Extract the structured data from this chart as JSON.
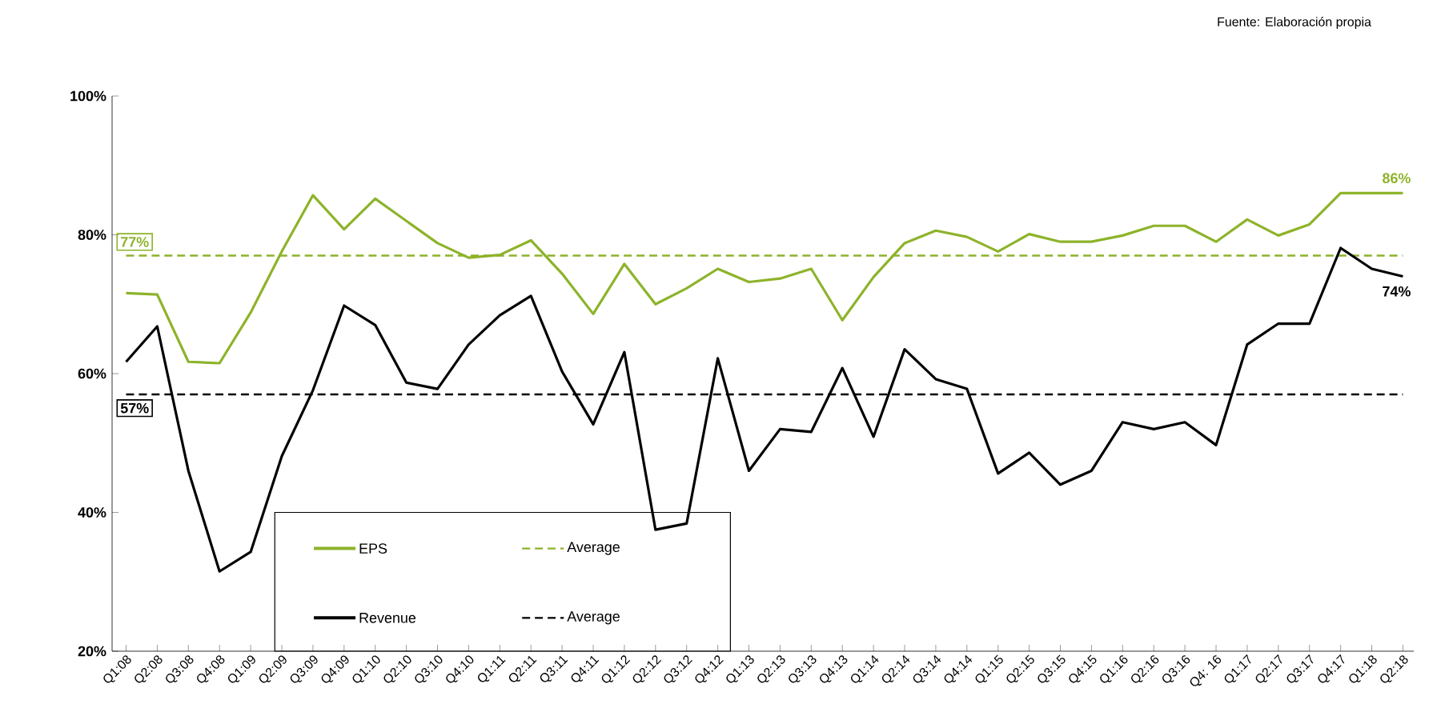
{
  "chart_data": {
    "type": "line",
    "categories": [
      "Q1:08",
      "Q2:08",
      "Q3:08",
      "Q4:08",
      "Q1:09",
      "Q2:09",
      "Q3:09",
      "Q4:09",
      "Q1:10",
      "Q2:10",
      "Q3:10",
      "Q4:10",
      "Q1:11",
      "Q2:11",
      "Q3:11",
      "Q4:11",
      "Q1:12",
      "Q2:12",
      "Q3:12",
      "Q4:12",
      "Q1:13",
      "Q2:13",
      "Q3:13",
      "Q4:13",
      "Q1:14",
      "Q2:14",
      "Q3:14",
      "Q4:14",
      "Q1:15",
      "Q2:15",
      "Q3:15",
      "Q4:15",
      "Q1:16",
      "Q2:16",
      "Q3:16",
      "Q4: 16",
      "Q1:17",
      "Q2:17",
      "Q3:17",
      "Q4:17",
      "Q1:18",
      "Q2:18"
    ],
    "series": [
      {
        "name": "EPS",
        "color": "#8db32a",
        "line_style": "solid",
        "values": [
          71.6,
          71.4,
          61.7,
          61.5,
          68.8,
          77.6,
          85.7,
          80.8,
          85.2,
          82,
          78.8,
          76.7,
          77.1,
          79.2,
          74.4,
          68.6,
          75.8,
          70,
          72.3,
          75.1,
          73.2,
          73.7,
          75.1,
          67.7,
          73.9,
          78.8,
          80.6,
          79.7,
          77.6,
          80.1,
          79,
          79,
          79.9,
          81.3,
          81.3,
          79,
          82.2,
          79.9,
          81.5,
          86,
          86,
          86
        ]
      },
      {
        "name": "Average",
        "color": "#8db32a",
        "line_style": "dashed",
        "values": [
          77,
          77,
          77,
          77,
          77,
          77,
          77,
          77,
          77,
          77,
          77,
          77,
          77,
          77,
          77,
          77,
          77,
          77,
          77,
          77,
          77,
          77,
          77,
          77,
          77,
          77,
          77,
          77,
          77,
          77,
          77,
          77,
          77,
          77,
          77,
          77,
          77,
          77,
          77,
          77,
          77,
          77
        ]
      },
      {
        "name": "Revenue",
        "color": "#000000",
        "line_style": "solid",
        "values": [
          61.7,
          66.8,
          46,
          31.5,
          34.3,
          48.1,
          57.6,
          69.8,
          67,
          58.7,
          57.8,
          64.2,
          68.4,
          71.2,
          60.3,
          52.7,
          63.1,
          37.5,
          38.4,
          62.2,
          46,
          52,
          51.6,
          60.8,
          50.9,
          63.5,
          59.2,
          57.8,
          45.6,
          48.6,
          44,
          46,
          53,
          52,
          53,
          49.7,
          64.2,
          67.2,
          67.2,
          78.1,
          75.1,
          74
        ]
      },
      {
        "name": "Average",
        "color": "#000000",
        "line_style": "dashed",
        "values": [
          57,
          57,
          57,
          57,
          57,
          57,
          57,
          57,
          57,
          57,
          57,
          57,
          57,
          57,
          57,
          57,
          57,
          57,
          57,
          57,
          57,
          57,
          57,
          57,
          57,
          57,
          57,
          57,
          57,
          57,
          57,
          57,
          57,
          57,
          57,
          57,
          57,
          57,
          57,
          57,
          57,
          57
        ]
      }
    ],
    "ylim": [
      20,
      100
    ],
    "yticks": [
      {
        "value": 20,
        "label": "20%"
      },
      {
        "value": 40,
        "label": "40%"
      },
      {
        "value": 60,
        "label": "60%"
      },
      {
        "value": 80,
        "label": "80%"
      },
      {
        "value": 100,
        "label": "100%"
      }
    ],
    "grid": false,
    "legend": "bottom left",
    "marker": "none",
    "annotations": [
      {
        "text": "77%",
        "x": "Q1:08",
        "y": 77
      },
      {
        "text": "57%",
        "x": "Q1:08",
        "y": 57
      },
      {
        "text": "86%",
        "x": "Q2:18",
        "y": 86
      },
      {
        "text": "74%",
        "x": "Q2:18",
        "y": 74
      },
      "Fuente: Elaboración propia"
    ]
  }
}
